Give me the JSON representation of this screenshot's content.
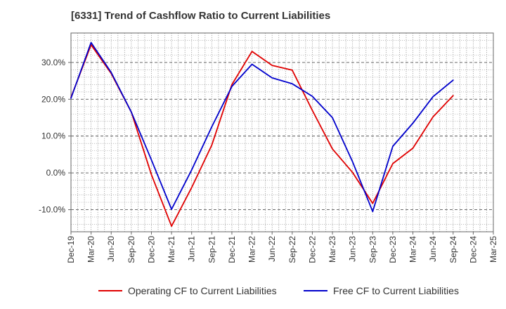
{
  "chart_data": {
    "type": "line",
    "title": "[6331]  Trend of Cashflow Ratio to Current Liabilities",
    "xlabel": "",
    "ylabel": "",
    "x": [
      "Dec-19",
      "Mar-20",
      "Jun-20",
      "Sep-20",
      "Dec-20",
      "Mar-21",
      "Jun-21",
      "Sep-21",
      "Dec-21",
      "Mar-22",
      "Jun-22",
      "Sep-22",
      "Dec-22",
      "Mar-23",
      "Jun-23",
      "Sep-23",
      "Dec-23",
      "Mar-24",
      "Jun-24",
      "Sep-24",
      "Dec-24",
      "Mar-25"
    ],
    "ylim": [
      -16,
      38
    ],
    "yticks": [
      30,
      20,
      10,
      0,
      -10
    ],
    "ytick_labels": [
      "30.0%",
      "20.0%",
      "10.0%",
      "0.0%",
      "-10.0%"
    ],
    "grid": true,
    "legend_position": "bottom",
    "series": [
      {
        "name": "Operating CF to Current Liabilities",
        "color": "#e00000",
        "values": [
          20.5,
          34.8,
          27.0,
          16.5,
          -0.5,
          -14.5,
          -4.0,
          7.5,
          24.0,
          33.0,
          29.2,
          27.9,
          17.0,
          6.5,
          0.1,
          -8.3,
          2.5,
          6.7,
          15.2,
          21.0,
          null,
          null
        ]
      },
      {
        "name": "Free CF to Current Liabilities",
        "color": "#0000cc",
        "values": [
          20.3,
          35.4,
          27.3,
          16.5,
          3.5,
          -9.9,
          0.8,
          12.5,
          23.5,
          29.5,
          25.8,
          24.2,
          20.8,
          15.0,
          3.0,
          -10.5,
          7.2,
          13.5,
          20.7,
          25.2,
          null,
          null
        ]
      }
    ]
  }
}
